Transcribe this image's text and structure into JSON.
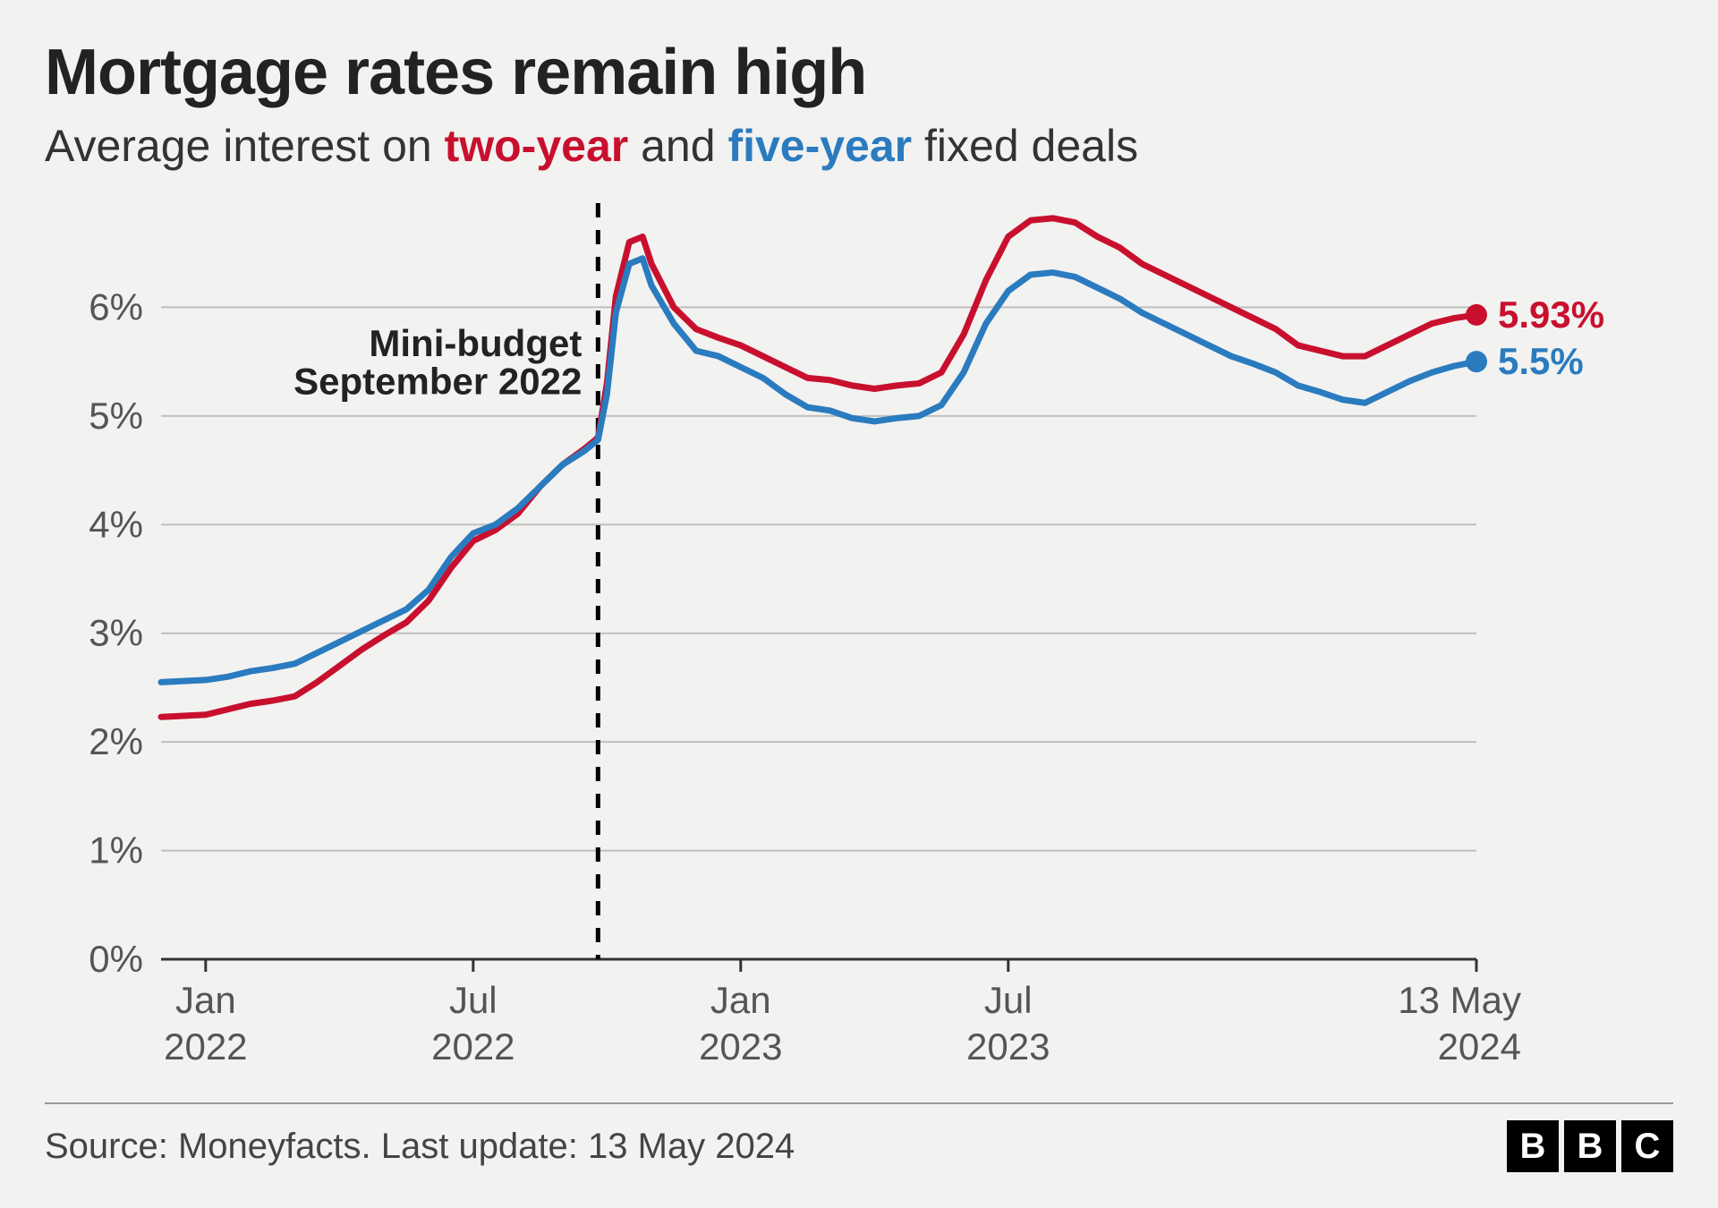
{
  "title": "Mortgage rates remain high",
  "subtitle_prefix": "Average interest on ",
  "subtitle_red": "two-year",
  "subtitle_mid": " and ",
  "subtitle_blue": "five-year",
  "subtitle_suffix": " fixed deals",
  "source_text": "Source: Moneyfacts. Last update: 13 May 2024",
  "logo_letters": [
    "B",
    "B",
    "C"
  ],
  "chart": {
    "type": "line",
    "x_domain": [
      0,
      29.5
    ],
    "y_domain": [
      0,
      7
    ],
    "y_ticks": [
      0,
      1,
      2,
      3,
      4,
      5,
      6
    ],
    "y_tick_labels": [
      "0%",
      "1%",
      "2%",
      "3%",
      "4%",
      "5%",
      "6%"
    ],
    "x_ticks": [
      1,
      7,
      13,
      19,
      29.5
    ],
    "x_tick_labels_top": [
      "Jan",
      "Jul",
      "Jan",
      "Jul",
      "13 May"
    ],
    "x_tick_labels_bot": [
      "2022",
      "2022",
      "2023",
      "2023",
      "2024"
    ],
    "grid_color": "#bfbfbf",
    "axis_color": "#333",
    "background_color": "#f2f2f0",
    "line_width": 7,
    "annotation": {
      "x": 9.8,
      "label_line1": "Mini-budget",
      "label_line2": "September 2022",
      "dash_color": "#000"
    },
    "series": [
      {
        "name": "two-year",
        "color": "#c8102e",
        "end_label": "5.93%",
        "data": [
          [
            0,
            2.23
          ],
          [
            0.5,
            2.24
          ],
          [
            1,
            2.25
          ],
          [
            1.5,
            2.3
          ],
          [
            2,
            2.35
          ],
          [
            2.5,
            2.38
          ],
          [
            3,
            2.42
          ],
          [
            3.5,
            2.55
          ],
          [
            4,
            2.7
          ],
          [
            4.5,
            2.85
          ],
          [
            5,
            2.98
          ],
          [
            5.5,
            3.1
          ],
          [
            6,
            3.3
          ],
          [
            6.5,
            3.6
          ],
          [
            7,
            3.85
          ],
          [
            7.5,
            3.95
          ],
          [
            8,
            4.1
          ],
          [
            8.5,
            4.35
          ],
          [
            9,
            4.55
          ],
          [
            9.5,
            4.7
          ],
          [
            9.8,
            4.8
          ],
          [
            10.0,
            5.3
          ],
          [
            10.2,
            6.1
          ],
          [
            10.5,
            6.6
          ],
          [
            10.8,
            6.65
          ],
          [
            11,
            6.4
          ],
          [
            11.5,
            6.0
          ],
          [
            12,
            5.8
          ],
          [
            12.5,
            5.72
          ],
          [
            13,
            5.65
          ],
          [
            13.5,
            5.55
          ],
          [
            14,
            5.45
          ],
          [
            14.5,
            5.35
          ],
          [
            15,
            5.33
          ],
          [
            15.5,
            5.28
          ],
          [
            16,
            5.25
          ],
          [
            16.5,
            5.28
          ],
          [
            17,
            5.3
          ],
          [
            17.5,
            5.4
          ],
          [
            18,
            5.75
          ],
          [
            18.5,
            6.25
          ],
          [
            19,
            6.65
          ],
          [
            19.5,
            6.8
          ],
          [
            20,
            6.82
          ],
          [
            20.5,
            6.78
          ],
          [
            21,
            6.65
          ],
          [
            21.5,
            6.55
          ],
          [
            22,
            6.4
          ],
          [
            22.5,
            6.3
          ],
          [
            23,
            6.2
          ],
          [
            23.5,
            6.1
          ],
          [
            24,
            6.0
          ],
          [
            24.5,
            5.9
          ],
          [
            25,
            5.8
          ],
          [
            25.5,
            5.65
          ],
          [
            26,
            5.6
          ],
          [
            26.5,
            5.55
          ],
          [
            27,
            5.55
          ],
          [
            27.5,
            5.65
          ],
          [
            28,
            5.75
          ],
          [
            28.5,
            5.85
          ],
          [
            29,
            5.9
          ],
          [
            29.5,
            5.93
          ]
        ]
      },
      {
        "name": "five-year",
        "color": "#2a7bbf",
        "end_label": "5.5%",
        "data": [
          [
            0,
            2.55
          ],
          [
            0.5,
            2.56
          ],
          [
            1,
            2.57
          ],
          [
            1.5,
            2.6
          ],
          [
            2,
            2.65
          ],
          [
            2.5,
            2.68
          ],
          [
            3,
            2.72
          ],
          [
            3.5,
            2.82
          ],
          [
            4,
            2.92
          ],
          [
            4.5,
            3.02
          ],
          [
            5,
            3.12
          ],
          [
            5.5,
            3.22
          ],
          [
            6,
            3.4
          ],
          [
            6.5,
            3.7
          ],
          [
            7,
            3.92
          ],
          [
            7.5,
            4.0
          ],
          [
            8,
            4.15
          ],
          [
            8.5,
            4.35
          ],
          [
            9,
            4.55
          ],
          [
            9.5,
            4.68
          ],
          [
            9.8,
            4.78
          ],
          [
            10.0,
            5.2
          ],
          [
            10.2,
            5.95
          ],
          [
            10.5,
            6.4
          ],
          [
            10.8,
            6.45
          ],
          [
            11,
            6.2
          ],
          [
            11.5,
            5.85
          ],
          [
            12,
            5.6
          ],
          [
            12.5,
            5.55
          ],
          [
            13,
            5.45
          ],
          [
            13.5,
            5.35
          ],
          [
            14,
            5.2
          ],
          [
            14.5,
            5.08
          ],
          [
            15,
            5.05
          ],
          [
            15.5,
            4.98
          ],
          [
            16,
            4.95
          ],
          [
            16.5,
            4.98
          ],
          [
            17,
            5.0
          ],
          [
            17.5,
            5.1
          ],
          [
            18,
            5.4
          ],
          [
            18.5,
            5.85
          ],
          [
            19,
            6.15
          ],
          [
            19.5,
            6.3
          ],
          [
            20,
            6.32
          ],
          [
            20.5,
            6.28
          ],
          [
            21,
            6.18
          ],
          [
            21.5,
            6.08
          ],
          [
            22,
            5.95
          ],
          [
            22.5,
            5.85
          ],
          [
            23,
            5.75
          ],
          [
            23.5,
            5.65
          ],
          [
            24,
            5.55
          ],
          [
            24.5,
            5.48
          ],
          [
            25,
            5.4
          ],
          [
            25.5,
            5.28
          ],
          [
            26,
            5.22
          ],
          [
            26.5,
            5.15
          ],
          [
            27,
            5.12
          ],
          [
            27.5,
            5.22
          ],
          [
            28,
            5.32
          ],
          [
            28.5,
            5.4
          ],
          [
            29,
            5.46
          ],
          [
            29.5,
            5.5
          ]
        ]
      }
    ],
    "end_marker_radius": 12,
    "tick_len": 14,
    "axis_label_fontsize": 42,
    "annot_fontsize": 42,
    "end_label_fontsize": 42
  }
}
